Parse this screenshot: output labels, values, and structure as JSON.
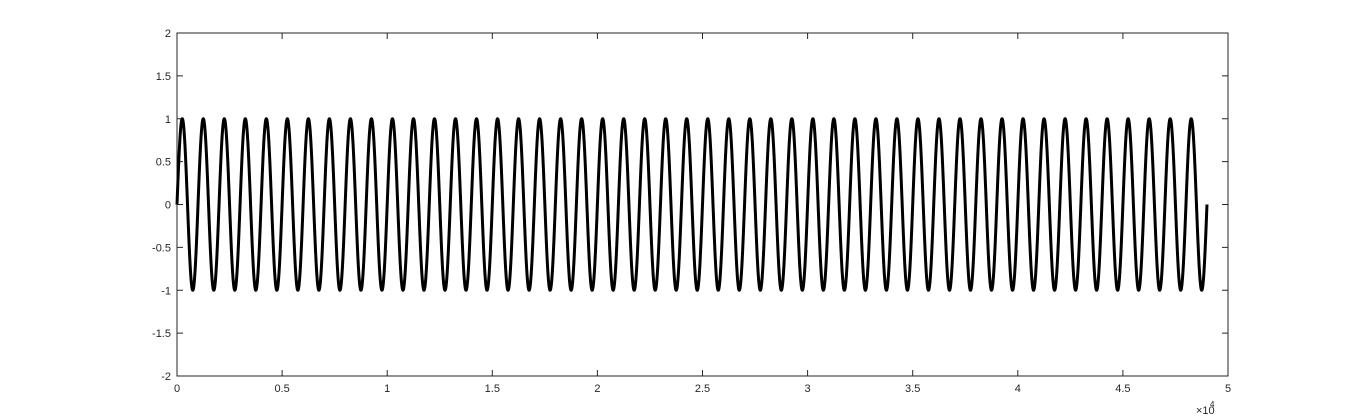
{
  "chart_data": {
    "type": "line",
    "title": "",
    "xlabel": "",
    "ylabel": "",
    "xlim": [
      0,
      50000
    ],
    "ylim": [
      -2,
      2
    ],
    "x_tick_values": [
      0,
      5000,
      10000,
      15000,
      20000,
      25000,
      30000,
      35000,
      40000,
      45000,
      50000
    ],
    "x_tick_labels": [
      "0",
      "0.5",
      "1",
      "1.5",
      "2",
      "2.5",
      "3",
      "3.5",
      "4",
      "4.5",
      "5"
    ],
    "x_exponent_base": "×10",
    "x_exponent_power": "4",
    "y_tick_values": [
      2,
      1.5,
      1,
      0.5,
      0,
      -0.5,
      -1,
      -1.5,
      -2
    ],
    "y_tick_labels": [
      "2",
      "1.5",
      "1",
      "0.5",
      "0",
      "-0.5",
      "-1",
      "-1.5",
      "-2"
    ],
    "grid": false,
    "line_color": "#000000",
    "series": [
      {
        "function": "sine",
        "amplitude": 1,
        "period": 1000,
        "x_start": 0,
        "x_end": 49000
      }
    ]
  }
}
